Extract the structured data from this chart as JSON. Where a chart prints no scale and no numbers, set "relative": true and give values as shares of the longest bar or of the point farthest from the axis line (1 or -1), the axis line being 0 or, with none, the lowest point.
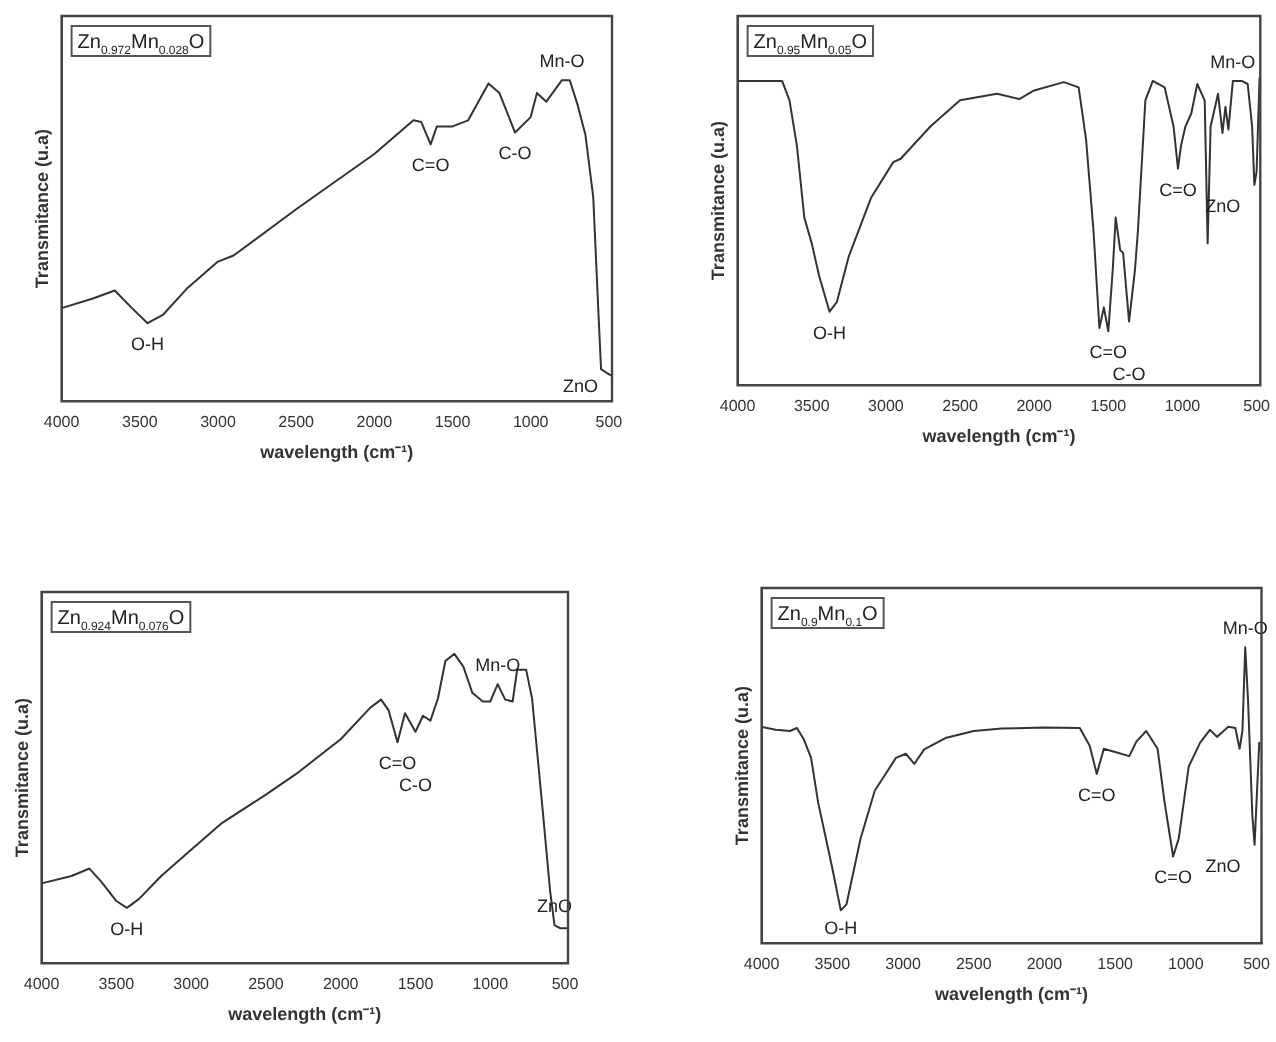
{
  "chart_data": [
    {
      "type": "line",
      "title": "Zn$_{0.972}$Mn$_{0.028}$O",
      "xlabel": "wavelength (cm⁻¹)",
      "ylabel": "Transmitance (u.a)",
      "relative": true,
      "marker": "none",
      "color": "#333333",
      "xlim": [
        4000,
        480
      ],
      "xticks": [
        4000,
        3500,
        3000,
        2500,
        2000,
        1500,
        1000,
        500
      ],
      "x": [
        4000,
        3800,
        3660,
        3550,
        3450,
        3350,
        3200,
        3000,
        2900,
        2500,
        2000,
        1750,
        1700,
        1640,
        1600,
        1500,
        1400,
        1270,
        1200,
        1100,
        1000,
        960,
        900,
        800,
        750,
        700,
        650,
        600,
        570,
        550,
        500,
        480
      ],
      "values": [
        0.29,
        0.32,
        0.345,
        0.29,
        0.243,
        0.27,
        0.35,
        0.435,
        0.454,
        0.598,
        0.77,
        0.875,
        0.87,
        0.8,
        0.856,
        0.856,
        0.875,
        0.99,
        0.96,
        0.837,
        0.885,
        0.96,
        0.933,
        1.0,
        1.0,
        0.923,
        0.83,
        0.636,
        0.31,
        0.1,
        0.084,
        0.08
      ],
      "annotations": [
        {
          "text": "O-H",
          "x": 3450,
          "y": 0.243
        },
        {
          "text": "C=O",
          "x": 1640,
          "y": 0.8
        },
        {
          "text": "C-O",
          "x": 1100,
          "y": 0.837
        },
        {
          "text": "Mn-O",
          "x": 800,
          "y": 1.0
        },
        {
          "text": "ZnO",
          "x": 480,
          "y": 0.08
        }
      ]
    },
    {
      "type": "line",
      "title": "Zn$_{0.95}$Mn$_{0.05}$O",
      "xlabel": "wavelength (cm⁻¹)",
      "ylabel": "Transmitance (u.a)",
      "relative": true,
      "marker": "none",
      "color": "#333333",
      "xlim": [
        4000,
        475
      ],
      "xticks": [
        4000,
        3500,
        3000,
        2500,
        2000,
        1500,
        1000,
        500
      ],
      "x": [
        4000,
        3700,
        3650,
        3600,
        3550,
        3500,
        3450,
        3380,
        3330,
        3250,
        3100,
        2950,
        2900,
        2700,
        2500,
        2250,
        2100,
        2000,
        1800,
        1700,
        1650,
        1600,
        1560,
        1530,
        1500,
        1470,
        1450,
        1420,
        1400,
        1360,
        1320,
        1300,
        1250,
        1200,
        1120,
        1060,
        1030,
        1010,
        980,
        940,
        900,
        850,
        830,
        810,
        760,
        730,
        710,
        690,
        660,
        600,
        560,
        530,
        515,
        500,
        480
      ],
      "values": [
        0.989,
        0.989,
        0.926,
        0.778,
        0.545,
        0.461,
        0.355,
        0.239,
        0.271,
        0.419,
        0.609,
        0.725,
        0.736,
        0.841,
        0.926,
        0.947,
        0.93,
        0.958,
        0.985,
        0.968,
        0.799,
        0.503,
        0.186,
        0.253,
        0.175,
        0.376,
        0.545,
        0.44,
        0.429,
        0.207,
        0.376,
        0.503,
        0.926,
        0.989,
        0.968,
        0.841,
        0.704,
        0.778,
        0.841,
        0.884,
        0.979,
        0.926,
        0.461,
        0.841,
        0.947,
        0.82,
        0.905,
        0.831,
        0.989,
        0.989,
        0.979,
        0.841,
        0.651,
        0.693,
        1.0
      ],
      "annotations": [
        {
          "text": "O-H",
          "x": 3380,
          "y": 0.239
        },
        {
          "text": "C=O",
          "x": 1500,
          "y": 0.175
        },
        {
          "text": "C-O",
          "x": 1360,
          "y": 0.207
        },
        {
          "text": "C=O",
          "x": 1030,
          "y": 0.704
        },
        {
          "text": "ZnO",
          "x": 515,
          "y": 0.651
        },
        {
          "text": "Mn-O",
          "x": 660,
          "y": 0.989
        }
      ]
    },
    {
      "type": "line",
      "title": "Zn$_{0.924}$Mn$_{0.076}$O",
      "xlabel": "wavelength (cm⁻¹)",
      "ylabel": "Transmitance (u.a)",
      "relative": true,
      "marker": "none",
      "color": "#333333",
      "xlim": [
        4000,
        480
      ],
      "xticks": [
        4000,
        3500,
        3000,
        2500,
        2000,
        1500,
        1000,
        500
      ],
      "x": [
        4000,
        3800,
        3680,
        3600,
        3500,
        3430,
        3350,
        3200,
        3000,
        2800,
        2500,
        2300,
        2000,
        1800,
        1730,
        1680,
        1620,
        1570,
        1500,
        1450,
        1400,
        1350,
        1300,
        1240,
        1180,
        1120,
        1050,
        1000,
        950,
        900,
        850,
        820,
        760,
        720,
        650,
        600,
        570,
        530,
        490
      ],
      "values": [
        0.258,
        0.282,
        0.306,
        0.263,
        0.201,
        0.179,
        0.207,
        0.282,
        0.367,
        0.451,
        0.545,
        0.611,
        0.724,
        0.827,
        0.852,
        0.818,
        0.714,
        0.808,
        0.748,
        0.8,
        0.784,
        0.855,
        0.977,
        1.0,
        0.959,
        0.874,
        0.846,
        0.846,
        0.902,
        0.852,
        0.846,
        0.949,
        0.949,
        0.855,
        0.498,
        0.235,
        0.122,
        0.113,
        0.113
      ],
      "annotations": [
        {
          "text": "O-H",
          "x": 3430,
          "y": 0.179
        },
        {
          "text": "C=O",
          "x": 1620,
          "y": 0.714
        },
        {
          "text": "C-O",
          "x": 1500,
          "y": 0.748
        },
        {
          "text": "Mn-O",
          "x": 950,
          "y": 0.902
        },
        {
          "text": "ZnO",
          "x": 570,
          "y": 0.122
        }
      ]
    },
    {
      "type": "line",
      "title": "Zn$_{0.9}$Mn$_{0.1}$O",
      "xlabel": "wavelength (cm⁻¹)",
      "ylabel": "Transmitance (u.a)",
      "relative": true,
      "marker": "none",
      "color": "#333333",
      "xlim": [
        4000,
        465
      ],
      "xticks": [
        4000,
        3500,
        3000,
        2500,
        2000,
        1500,
        1000,
        500
      ],
      "x": [
        4000,
        3900,
        3800,
        3750,
        3700,
        3650,
        3600,
        3500,
        3440,
        3400,
        3300,
        3200,
        3050,
        2980,
        2920,
        2850,
        2700,
        2500,
        2300,
        2000,
        1750,
        1680,
        1630,
        1580,
        1500,
        1400,
        1350,
        1280,
        1200,
        1150,
        1090,
        1050,
        980,
        900,
        830,
        780,
        700,
        650,
        620,
        600,
        580,
        560,
        530,
        514,
        481
      ],
      "values": [
        0.731,
        0.721,
        0.717,
        0.727,
        0.687,
        0.626,
        0.475,
        0.253,
        0.111,
        0.131,
        0.354,
        0.515,
        0.626,
        0.64,
        0.606,
        0.655,
        0.693,
        0.717,
        0.725,
        0.729,
        0.727,
        0.667,
        0.572,
        0.657,
        0.646,
        0.632,
        0.681,
        0.717,
        0.657,
        0.475,
        0.293,
        0.354,
        0.596,
        0.677,
        0.721,
        0.697,
        0.731,
        0.727,
        0.657,
        0.717,
        1.0,
        0.818,
        0.434,
        0.333,
        0.677
      ],
      "annotations": [
        {
          "text": "O-H",
          "x": 3440,
          "y": 0.111
        },
        {
          "text": "C=O",
          "x": 1630,
          "y": 0.572
        },
        {
          "text": "C=O",
          "x": 1090,
          "y": 0.293
        },
        {
          "text": "Mn-O",
          "x": 580,
          "y": 1.0
        },
        {
          "text": "ZnO",
          "x": 514,
          "y": 0.333
        }
      ]
    }
  ]
}
